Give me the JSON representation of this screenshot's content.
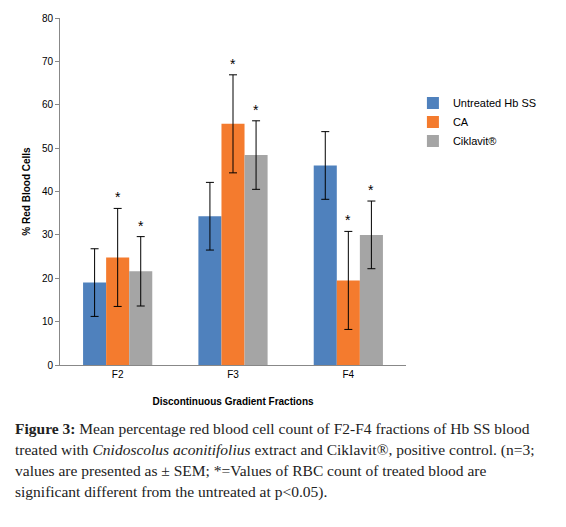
{
  "chart_data": {
    "type": "bar",
    "x_label": "Discontinuous Gradient Fractions",
    "y_label": "% Red Blood Cells",
    "categories": [
      "F2",
      "F3",
      "F4"
    ],
    "series": [
      {
        "name": "Untreated Hb SS",
        "color": "#4f81bd",
        "values": [
          19.0,
          34.3,
          46.0
        ],
        "error": [
          7.8,
          7.8,
          7.8
        ]
      },
      {
        "name": "CA",
        "color": "#f47b2e",
        "values": [
          24.8,
          55.6,
          19.5
        ],
        "error": [
          11.3,
          11.3,
          11.3
        ]
      },
      {
        "name": "Ciklavit®",
        "color": "#a5a5a5",
        "values": [
          21.6,
          48.4,
          30.0
        ],
        "error": [
          8.0,
          7.9,
          7.8
        ]
      }
    ],
    "annotations": [
      {
        "text": "*",
        "category": "F2",
        "series": "CA"
      },
      {
        "text": "*",
        "category": "F3",
        "series": "CA"
      },
      {
        "text": "*",
        "category": "F4",
        "series": "CA"
      },
      {
        "text": "*",
        "category": "F2",
        "series": "Ciklavit®"
      },
      {
        "text": "*",
        "category": "F3",
        "series": "Ciklavit®"
      },
      {
        "text": "*",
        "category": "F4",
        "series": "Ciklavit®"
      }
    ],
    "ylim": [
      0,
      80
    ],
    "yticks": [
      0,
      10,
      20,
      30,
      40,
      50,
      60,
      70,
      80
    ],
    "grid": false,
    "legend": "right",
    "caption": [
      "Figure 3:",
      " Mean percentage red blood cell count of F2-F4 fractions of Hb SS blood treated with ",
      "Cnidoscolus aconitifolius",
      " extract and Ciklavit®, positive control. (n=3; values are presented as ± SEM; *=Values of RBC count of treated blood are significant different from the untreated at p<0.05)."
    ]
  }
}
